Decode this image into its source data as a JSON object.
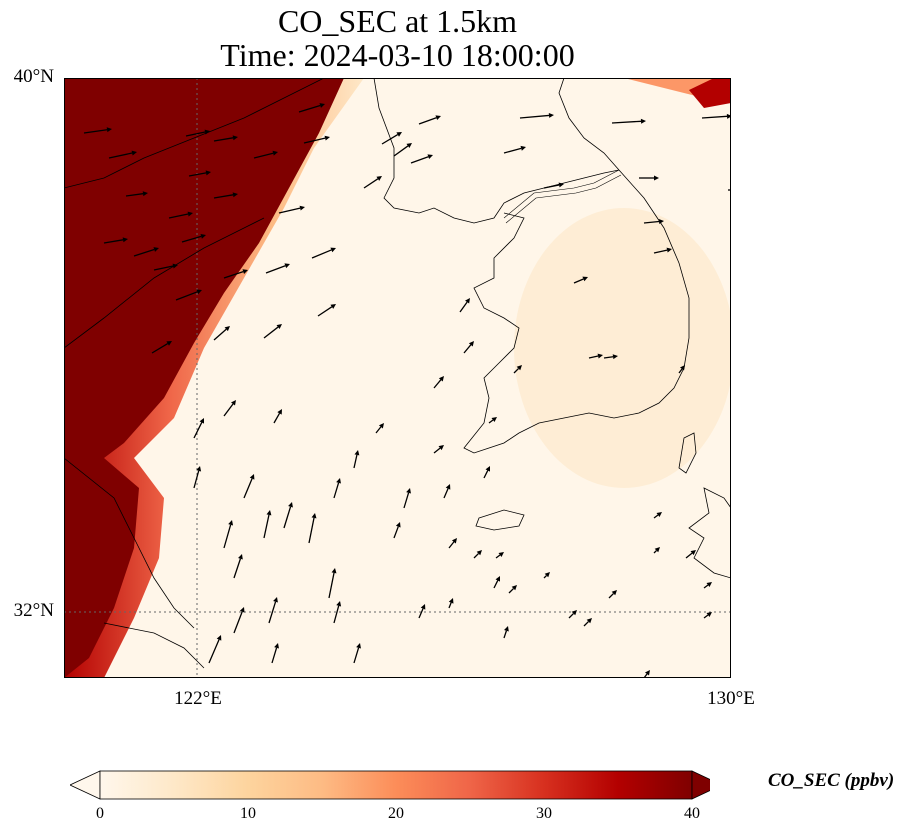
{
  "title_line1": "CO_SEC at 1.5km",
  "title_line2": "Time: 2024-03-10 18:00:00",
  "map": {
    "lon_range": [
      120.4,
      130
    ],
    "lat_range": [
      31.2,
      40
    ],
    "lat_ticks": [
      {
        "value": 40,
        "label": "40°N"
      },
      {
        "value": 32,
        "label": "32°N"
      }
    ],
    "lon_ticks": [
      {
        "value": 122,
        "label": "122°E"
      },
      {
        "value": 130,
        "label": "130°E"
      }
    ],
    "gridlines": {
      "lon": [
        122
      ],
      "lat": [
        32
      ],
      "style": "dotted"
    },
    "high_concentration_color": "#7f0000",
    "background_color": "#fff6e9"
  },
  "colorbar": {
    "label": "CO_SEC (ppbv)",
    "min": 0,
    "max": 40,
    "ticks": [
      "0",
      "10",
      "20",
      "30",
      "40"
    ],
    "colors": [
      "#fff7ec",
      "#fee8c8",
      "#fdd49e",
      "#fdbb84",
      "#fc8d59",
      "#ef6548",
      "#d7301f",
      "#b30000",
      "#7f0000"
    ],
    "extend": "both"
  }
}
